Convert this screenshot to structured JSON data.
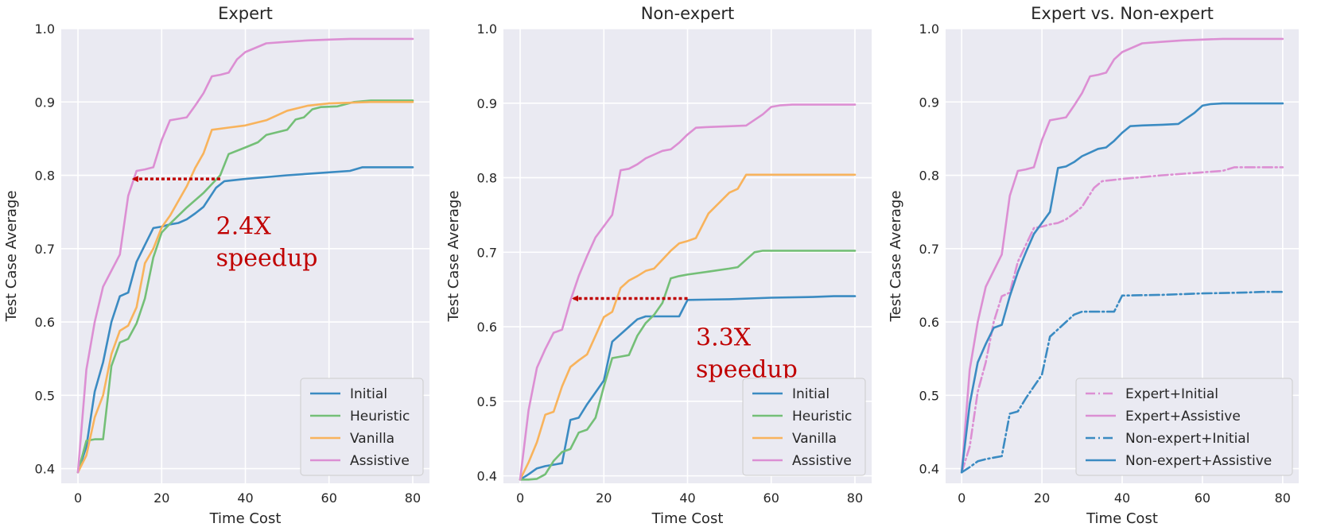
{
  "colors": {
    "Initial": "#3b8bc2",
    "Heuristic": "#74bf77",
    "Vanilla": "#f8b35c",
    "Assistive": "#dc8fd3",
    "annotation": "#c00000"
  },
  "chart_data": [
    {
      "type": "line",
      "title": "Expert",
      "xlabel": "Time Cost",
      "ylabel": "Test Case Average",
      "xlim": [
        -4,
        84
      ],
      "ylim": [
        0.38,
        1.0
      ],
      "xticks": [
        0,
        20,
        40,
        60,
        80
      ],
      "yticks": [
        0.4,
        0.5,
        0.6,
        0.7,
        0.8,
        0.9,
        1.0
      ],
      "xtick_labels": [
        "0",
        "20",
        "40",
        "60",
        "80"
      ],
      "ytick_labels": [
        "0.4",
        "0.5",
        "0.6",
        "0.7",
        "0.8",
        "0.9",
        "1.0"
      ],
      "grid": true,
      "legend_position": "lower-right",
      "legend": [
        "Initial",
        "Heuristic",
        "Vanilla",
        "Assistive"
      ],
      "series": [
        {
          "name": "Initial",
          "color": "#3b8bc2",
          "dash": "solid",
          "x": [
            0,
            2,
            4,
            6,
            8,
            10,
            12,
            14,
            16,
            18,
            20,
            22,
            24,
            26,
            28,
            30,
            33,
            35,
            40,
            50,
            60,
            65,
            68,
            72,
            80
          ],
          "y": [
            0.395,
            0.43,
            0.505,
            0.545,
            0.6,
            0.635,
            0.64,
            0.682,
            0.705,
            0.728,
            0.73,
            0.733,
            0.735,
            0.74,
            0.748,
            0.757,
            0.783,
            0.792,
            0.795,
            0.8,
            0.804,
            0.806,
            0.811,
            0.811,
            0.811
          ]
        },
        {
          "name": "Heuristic",
          "color": "#74bf77",
          "dash": "solid",
          "x": [
            0,
            2,
            4,
            6,
            8,
            10,
            12,
            14,
            16,
            18,
            20,
            22,
            26,
            30,
            34,
            36,
            40,
            43,
            45,
            50,
            52,
            54,
            56,
            58,
            62,
            66,
            70,
            80
          ],
          "y": [
            0.395,
            0.438,
            0.44,
            0.44,
            0.54,
            0.572,
            0.577,
            0.598,
            0.632,
            0.688,
            0.722,
            0.734,
            0.756,
            0.776,
            0.8,
            0.829,
            0.838,
            0.845,
            0.855,
            0.862,
            0.876,
            0.879,
            0.89,
            0.893,
            0.894,
            0.9,
            0.902,
            0.902
          ]
        },
        {
          "name": "Vanilla",
          "color": "#f8b35c",
          "dash": "solid",
          "x": [
            0,
            2,
            4,
            6,
            8,
            10,
            12,
            14,
            16,
            18,
            20,
            22,
            24,
            26,
            28,
            30,
            32,
            36,
            40,
            45,
            50,
            55,
            60,
            65,
            70,
            80
          ],
          "y": [
            0.395,
            0.418,
            0.47,
            0.5,
            0.556,
            0.588,
            0.595,
            0.62,
            0.68,
            0.7,
            0.729,
            0.745,
            0.765,
            0.785,
            0.81,
            0.83,
            0.862,
            0.865,
            0.868,
            0.875,
            0.888,
            0.895,
            0.898,
            0.899,
            0.9,
            0.9
          ]
        },
        {
          "name": "Assistive",
          "color": "#dc8fd3",
          "dash": "solid",
          "x": [
            0,
            2,
            4,
            6,
            8,
            10,
            12,
            14,
            16,
            18,
            20,
            22,
            24,
            26,
            28,
            30,
            32,
            34,
            36,
            38,
            40,
            45,
            50,
            55,
            60,
            65,
            70,
            80
          ],
          "y": [
            0.395,
            0.535,
            0.6,
            0.648,
            0.67,
            0.692,
            0.772,
            0.806,
            0.808,
            0.811,
            0.848,
            0.875,
            0.877,
            0.879,
            0.895,
            0.912,
            0.935,
            0.937,
            0.94,
            0.958,
            0.968,
            0.98,
            0.982,
            0.984,
            0.985,
            0.986,
            0.986,
            0.986
          ]
        }
      ],
      "annotation": {
        "text_lines": [
          "2.4X",
          "speedup"
        ],
        "arrow_from": [
          34,
          0.795
        ],
        "arrow_to": [
          12.5,
          0.795
        ],
        "text_at": [
          33,
          0.72
        ]
      }
    },
    {
      "type": "line",
      "title": "Non-expert",
      "xlabel": "Time Cost",
      "ylabel": "Test Case Average",
      "xlim": [
        -4,
        84
      ],
      "ylim": [
        0.39,
        1.0
      ],
      "xticks": [
        0,
        20,
        40,
        60,
        80
      ],
      "yticks": [
        0.4,
        0.5,
        0.6,
        0.7,
        0.8,
        0.9,
        1.0
      ],
      "xtick_labels": [
        "0",
        "20",
        "40",
        "60",
        "80"
      ],
      "ytick_labels": [
        "0.4",
        "0.5",
        "0.6",
        "0.7",
        "0.8",
        "0.9",
        "1.0"
      ],
      "grid": true,
      "legend_position": "lower-right",
      "legend": [
        "Initial",
        "Heuristic",
        "Vanilla",
        "Assistive"
      ],
      "series": [
        {
          "name": "Initial",
          "color": "#3b8bc2",
          "dash": "solid",
          "x": [
            0,
            2,
            4,
            6,
            8,
            10,
            12,
            14,
            16,
            18,
            20,
            22,
            24,
            26,
            28,
            30,
            33,
            35,
            38,
            40,
            50,
            60,
            70,
            75,
            80
          ],
          "y": [
            0.395,
            0.402,
            0.41,
            0.413,
            0.415,
            0.417,
            0.475,
            0.478,
            0.496,
            0.512,
            0.528,
            0.58,
            0.59,
            0.6,
            0.61,
            0.614,
            0.614,
            0.614,
            0.614,
            0.636,
            0.637,
            0.639,
            0.64,
            0.641,
            0.641
          ]
        },
        {
          "name": "Heuristic",
          "color": "#74bf77",
          "dash": "solid",
          "x": [
            0,
            2,
            4,
            6,
            8,
            10,
            12,
            14,
            16,
            18,
            20,
            22,
            24,
            26,
            28,
            30,
            32,
            34,
            36,
            38,
            40,
            45,
            50,
            52,
            54,
            56,
            58,
            62,
            70,
            80
          ],
          "y": [
            0.395,
            0.395,
            0.396,
            0.402,
            0.42,
            0.432,
            0.436,
            0.458,
            0.462,
            0.478,
            0.52,
            0.558,
            0.56,
            0.562,
            0.588,
            0.605,
            0.616,
            0.632,
            0.665,
            0.668,
            0.67,
            0.674,
            0.678,
            0.68,
            0.69,
            0.7,
            0.702,
            0.702,
            0.702,
            0.702
          ]
        },
        {
          "name": "Vanilla",
          "color": "#f8b35c",
          "dash": "solid",
          "x": [
            0,
            2,
            4,
            6,
            8,
            10,
            12,
            14,
            16,
            18,
            20,
            22,
            24,
            26,
            28,
            30,
            32,
            34,
            36,
            38,
            40,
            42,
            45,
            50,
            52,
            54,
            60,
            70,
            80
          ],
          "y": [
            0.395,
            0.418,
            0.445,
            0.482,
            0.486,
            0.52,
            0.546,
            0.555,
            0.563,
            0.588,
            0.613,
            0.62,
            0.652,
            0.662,
            0.668,
            0.675,
            0.678,
            0.69,
            0.702,
            0.712,
            0.715,
            0.719,
            0.752,
            0.78,
            0.785,
            0.804,
            0.804,
            0.804,
            0.804
          ]
        },
        {
          "name": "Assistive",
          "color": "#dc8fd3",
          "dash": "solid",
          "x": [
            0,
            2,
            4,
            6,
            8,
            10,
            12,
            14,
            16,
            18,
            20,
            22,
            24,
            26,
            28,
            30,
            32,
            34,
            36,
            38,
            40,
            42,
            45,
            50,
            54,
            58,
            60,
            62,
            65,
            70,
            80
          ],
          "y": [
            0.395,
            0.488,
            0.545,
            0.57,
            0.592,
            0.596,
            0.635,
            0.668,
            0.695,
            0.72,
            0.735,
            0.75,
            0.81,
            0.812,
            0.818,
            0.826,
            0.831,
            0.836,
            0.838,
            0.847,
            0.858,
            0.867,
            0.868,
            0.869,
            0.87,
            0.885,
            0.895,
            0.897,
            0.898,
            0.898,
            0.898
          ]
        }
      ],
      "annotation": {
        "text_lines": [
          "3.3X",
          "speedup"
        ],
        "arrow_from": [
          40,
          0.638
        ],
        "arrow_to": [
          12,
          0.638
        ],
        "text_at": [
          42,
          0.575
        ]
      }
    },
    {
      "type": "line",
      "title": "Expert vs. Non-expert",
      "xlabel": "Time Cost",
      "ylabel": "Test Case Average",
      "xlim": [
        -4,
        84
      ],
      "ylim": [
        0.38,
        1.0
      ],
      "xticks": [
        0,
        20,
        40,
        60,
        80
      ],
      "yticks": [
        0.4,
        0.5,
        0.6,
        0.7,
        0.8,
        0.9,
        1.0
      ],
      "xtick_labels": [
        "0",
        "20",
        "40",
        "60",
        "80"
      ],
      "ytick_labels": [
        "0.4",
        "0.5",
        "0.6",
        "0.7",
        "0.8",
        "0.9",
        "1.0"
      ],
      "grid": true,
      "legend_position": "lower-right",
      "legend": [
        "Expert+Initial",
        "Expert+Assistive",
        "Non-expert+Initial",
        "Non-expert+Assistive"
      ],
      "series": [
        {
          "name": "Expert+Initial",
          "color": "#dc8fd3",
          "dash": "dashdot",
          "x": [
            0,
            2,
            4,
            6,
            8,
            10,
            12,
            14,
            16,
            18,
            20,
            22,
            24,
            26,
            28,
            30,
            33,
            35,
            40,
            50,
            60,
            65,
            68,
            72,
            80
          ],
          "y": [
            0.395,
            0.43,
            0.505,
            0.545,
            0.6,
            0.635,
            0.64,
            0.682,
            0.705,
            0.728,
            0.73,
            0.733,
            0.735,
            0.74,
            0.748,
            0.757,
            0.783,
            0.792,
            0.795,
            0.8,
            0.804,
            0.806,
            0.811,
            0.811,
            0.811
          ]
        },
        {
          "name": "Expert+Assistive",
          "color": "#dc8fd3",
          "dash": "solid",
          "x": [
            0,
            2,
            4,
            6,
            8,
            10,
            12,
            14,
            16,
            18,
            20,
            22,
            24,
            26,
            28,
            30,
            32,
            34,
            36,
            38,
            40,
            45,
            50,
            55,
            60,
            65,
            70,
            80
          ],
          "y": [
            0.395,
            0.535,
            0.6,
            0.648,
            0.67,
            0.692,
            0.772,
            0.806,
            0.808,
            0.811,
            0.848,
            0.875,
            0.877,
            0.879,
            0.895,
            0.912,
            0.935,
            0.937,
            0.94,
            0.958,
            0.968,
            0.98,
            0.982,
            0.984,
            0.985,
            0.986,
            0.986,
            0.986
          ]
        },
        {
          "name": "Non-expert+Initial",
          "color": "#3b8bc2",
          "dash": "dashdot",
          "x": [
            0,
            2,
            4,
            6,
            8,
            10,
            12,
            14,
            16,
            18,
            20,
            22,
            24,
            26,
            28,
            30,
            33,
            35,
            38,
            40,
            50,
            60,
            70,
            75,
            80
          ],
          "y": [
            0.395,
            0.402,
            0.41,
            0.413,
            0.415,
            0.417,
            0.475,
            0.478,
            0.496,
            0.512,
            0.528,
            0.58,
            0.59,
            0.6,
            0.61,
            0.614,
            0.614,
            0.614,
            0.614,
            0.636,
            0.637,
            0.639,
            0.64,
            0.641,
            0.641
          ]
        },
        {
          "name": "Non-expert+Assistive",
          "color": "#3b8bc2",
          "dash": "solid",
          "x": [
            0,
            2,
            4,
            6,
            8,
            10,
            12,
            14,
            16,
            18,
            20,
            22,
            24,
            26,
            28,
            30,
            32,
            34,
            36,
            38,
            40,
            42,
            45,
            50,
            54,
            58,
            60,
            62,
            65,
            70,
            80
          ],
          "y": [
            0.395,
            0.488,
            0.545,
            0.57,
            0.592,
            0.596,
            0.635,
            0.668,
            0.695,
            0.72,
            0.735,
            0.75,
            0.81,
            0.812,
            0.818,
            0.826,
            0.831,
            0.836,
            0.838,
            0.847,
            0.858,
            0.867,
            0.868,
            0.869,
            0.87,
            0.885,
            0.895,
            0.897,
            0.898,
            0.898,
            0.898
          ]
        }
      ]
    }
  ]
}
